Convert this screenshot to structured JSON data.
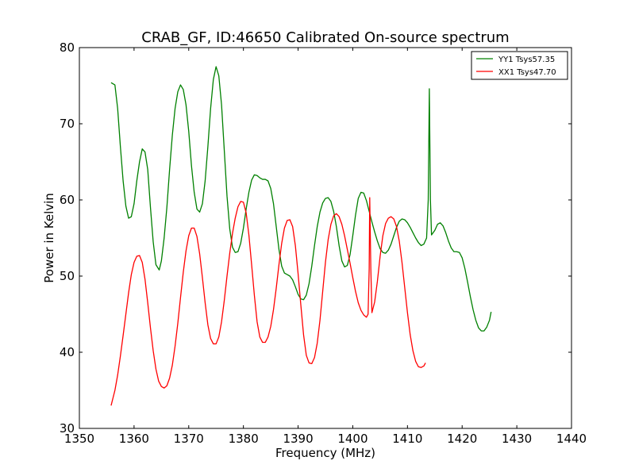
{
  "chart_data": {
    "type": "line",
    "title": "CRAB_GF, ID:46650 Calibrated On-source spectrum",
    "xlabel": "Frequency (MHz)",
    "ylabel": "Power in Kelvin",
    "xlim": [
      1350,
      1440
    ],
    "ylim": [
      30,
      80
    ],
    "xticks": [
      1350,
      1360,
      1370,
      1380,
      1390,
      1400,
      1410,
      1420,
      1430,
      1440
    ],
    "yticks": [
      30,
      40,
      50,
      60,
      70,
      80
    ],
    "grid": false,
    "legend_position": "top-right",
    "series": [
      {
        "name": "YY1 Tsys57.35",
        "color": "#008000",
        "points": [
          [
            1355.8,
            75.4
          ],
          [
            1356.5,
            75.1
          ],
          [
            1357.0,
            72.0
          ],
          [
            1357.5,
            67.0
          ],
          [
            1358.0,
            62.5
          ],
          [
            1358.5,
            59.2
          ],
          [
            1359.0,
            57.6
          ],
          [
            1359.5,
            57.8
          ],
          [
            1360.0,
            59.5
          ],
          [
            1360.5,
            62.5
          ],
          [
            1361.0,
            65.0
          ],
          [
            1361.5,
            66.7
          ],
          [
            1362.0,
            66.3
          ],
          [
            1362.5,
            64.0
          ],
          [
            1363.0,
            59.0
          ],
          [
            1363.5,
            54.5
          ],
          [
            1364.0,
            51.5
          ],
          [
            1364.6,
            50.8
          ],
          [
            1365.0,
            52.0
          ],
          [
            1365.5,
            55.0
          ],
          [
            1366.0,
            59.0
          ],
          [
            1366.5,
            64.0
          ],
          [
            1367.0,
            68.5
          ],
          [
            1367.5,
            72.0
          ],
          [
            1368.0,
            74.2
          ],
          [
            1368.5,
            75.1
          ],
          [
            1369.0,
            74.5
          ],
          [
            1369.5,
            72.5
          ],
          [
            1370.0,
            69.0
          ],
          [
            1370.5,
            64.5
          ],
          [
            1371.0,
            61.0
          ],
          [
            1371.5,
            58.8
          ],
          [
            1372.0,
            58.4
          ],
          [
            1372.5,
            59.5
          ],
          [
            1373.0,
            62.5
          ],
          [
            1373.5,
            67.0
          ],
          [
            1374.0,
            72.0
          ],
          [
            1374.5,
            75.8
          ],
          [
            1375.0,
            77.5
          ],
          [
            1375.5,
            76.3
          ],
          [
            1376.0,
            72.5
          ],
          [
            1376.5,
            66.5
          ],
          [
            1377.0,
            60.5
          ],
          [
            1377.5,
            56.2
          ],
          [
            1378.0,
            53.8
          ],
          [
            1378.5,
            53.1
          ],
          [
            1379.0,
            53.2
          ],
          [
            1379.5,
            54.3
          ],
          [
            1380.0,
            56.3
          ],
          [
            1380.5,
            58.8
          ],
          [
            1381.0,
            61.0
          ],
          [
            1381.5,
            62.6
          ],
          [
            1382.0,
            63.3
          ],
          [
            1382.5,
            63.2
          ],
          [
            1383.0,
            62.9
          ],
          [
            1383.5,
            62.7
          ],
          [
            1384.0,
            62.7
          ],
          [
            1384.5,
            62.5
          ],
          [
            1385.0,
            61.5
          ],
          [
            1385.5,
            59.5
          ],
          [
            1386.0,
            56.5
          ],
          [
            1386.5,
            53.5
          ],
          [
            1387.0,
            51.3
          ],
          [
            1387.5,
            50.4
          ],
          [
            1388.0,
            50.2
          ],
          [
            1388.5,
            50.0
          ],
          [
            1389.0,
            49.5
          ],
          [
            1389.5,
            48.6
          ],
          [
            1390.0,
            47.6
          ],
          [
            1390.5,
            47.0
          ],
          [
            1391.0,
            46.9
          ],
          [
            1391.5,
            47.5
          ],
          [
            1392.0,
            49.0
          ],
          [
            1392.5,
            51.3
          ],
          [
            1393.0,
            54.0
          ],
          [
            1393.5,
            56.5
          ],
          [
            1394.0,
            58.4
          ],
          [
            1394.5,
            59.6
          ],
          [
            1395.0,
            60.2
          ],
          [
            1395.5,
            60.3
          ],
          [
            1396.0,
            59.8
          ],
          [
            1396.5,
            58.5
          ],
          [
            1397.0,
            56.5
          ],
          [
            1397.5,
            54.0
          ],
          [
            1398.0,
            52.0
          ],
          [
            1398.5,
            51.2
          ],
          [
            1399.0,
            51.4
          ],
          [
            1399.5,
            52.8
          ],
          [
            1400.0,
            55.3
          ],
          [
            1400.5,
            58.0
          ],
          [
            1401.0,
            60.2
          ],
          [
            1401.5,
            61.0
          ],
          [
            1402.0,
            60.9
          ],
          [
            1402.5,
            59.9
          ],
          [
            1403.0,
            58.5
          ],
          [
            1403.5,
            57.1
          ],
          [
            1404.0,
            55.8
          ],
          [
            1404.5,
            54.6
          ],
          [
            1405.0,
            53.6
          ],
          [
            1405.5,
            53.1
          ],
          [
            1406.0,
            53.0
          ],
          [
            1406.5,
            53.4
          ],
          [
            1407.0,
            54.2
          ],
          [
            1407.5,
            55.3
          ],
          [
            1408.0,
            56.4
          ],
          [
            1408.5,
            57.2
          ],
          [
            1409.0,
            57.5
          ],
          [
            1409.5,
            57.4
          ],
          [
            1410.0,
            57.0
          ],
          [
            1410.5,
            56.4
          ],
          [
            1411.0,
            55.7
          ],
          [
            1411.5,
            55.0
          ],
          [
            1412.0,
            54.4
          ],
          [
            1412.5,
            54.0
          ],
          [
            1413.0,
            54.2
          ],
          [
            1413.5,
            55.0
          ],
          [
            1413.8,
            60.0
          ],
          [
            1414.0,
            74.6
          ],
          [
            1414.2,
            60.0
          ],
          [
            1414.4,
            55.4
          ],
          [
            1415.0,
            56.0
          ],
          [
            1415.5,
            56.8
          ],
          [
            1416.0,
            57.0
          ],
          [
            1416.5,
            56.6
          ],
          [
            1417.0,
            55.7
          ],
          [
            1417.5,
            54.6
          ],
          [
            1418.0,
            53.7
          ],
          [
            1418.5,
            53.2
          ],
          [
            1419.0,
            53.2
          ],
          [
            1419.5,
            53.1
          ],
          [
            1420.0,
            52.4
          ],
          [
            1420.5,
            51.0
          ],
          [
            1421.0,
            49.2
          ],
          [
            1421.5,
            47.3
          ],
          [
            1422.0,
            45.6
          ],
          [
            1422.5,
            44.2
          ],
          [
            1423.0,
            43.2
          ],
          [
            1423.5,
            42.8
          ],
          [
            1424.0,
            42.8
          ],
          [
            1424.5,
            43.3
          ],
          [
            1425.0,
            44.2
          ],
          [
            1425.3,
            45.3
          ]
        ]
      },
      {
        "name": "XX1 Tsys47.70",
        "color": "#ff0000",
        "points": [
          [
            1355.8,
            33.0
          ],
          [
            1356.5,
            35.0
          ],
          [
            1357.0,
            37.0
          ],
          [
            1357.5,
            39.5
          ],
          [
            1358.0,
            42.2
          ],
          [
            1358.5,
            45.0
          ],
          [
            1359.0,
            47.8
          ],
          [
            1359.5,
            50.2
          ],
          [
            1360.0,
            51.8
          ],
          [
            1360.5,
            52.6
          ],
          [
            1361.0,
            52.7
          ],
          [
            1361.5,
            51.8
          ],
          [
            1362.0,
            49.6
          ],
          [
            1362.5,
            46.5
          ],
          [
            1363.0,
            43.2
          ],
          [
            1363.5,
            40.2
          ],
          [
            1364.0,
            37.8
          ],
          [
            1364.5,
            36.2
          ],
          [
            1365.0,
            35.5
          ],
          [
            1365.5,
            35.3
          ],
          [
            1366.0,
            35.6
          ],
          [
            1366.5,
            36.6
          ],
          [
            1367.0,
            38.3
          ],
          [
            1367.5,
            40.8
          ],
          [
            1368.0,
            43.8
          ],
          [
            1368.5,
            47.2
          ],
          [
            1369.0,
            50.5
          ],
          [
            1369.5,
            53.3
          ],
          [
            1370.0,
            55.3
          ],
          [
            1370.5,
            56.3
          ],
          [
            1371.0,
            56.3
          ],
          [
            1371.5,
            55.2
          ],
          [
            1372.0,
            52.9
          ],
          [
            1372.5,
            49.8
          ],
          [
            1373.0,
            46.5
          ],
          [
            1373.5,
            43.6
          ],
          [
            1374.0,
            41.8
          ],
          [
            1374.5,
            41.1
          ],
          [
            1375.0,
            41.1
          ],
          [
            1375.5,
            42.0
          ],
          [
            1376.0,
            44.0
          ],
          [
            1376.5,
            46.8
          ],
          [
            1377.0,
            50.0
          ],
          [
            1377.5,
            53.0
          ],
          [
            1378.0,
            55.6
          ],
          [
            1378.5,
            57.6
          ],
          [
            1379.0,
            59.1
          ],
          [
            1379.5,
            59.8
          ],
          [
            1380.0,
            59.7
          ],
          [
            1380.5,
            58.3
          ],
          [
            1381.0,
            55.4
          ],
          [
            1381.5,
            51.5
          ],
          [
            1382.0,
            47.5
          ],
          [
            1382.5,
            44.0
          ],
          [
            1383.0,
            42.0
          ],
          [
            1383.5,
            41.3
          ],
          [
            1384.0,
            41.3
          ],
          [
            1384.5,
            42.0
          ],
          [
            1385.0,
            43.4
          ],
          [
            1385.5,
            45.6
          ],
          [
            1386.0,
            48.4
          ],
          [
            1386.5,
            51.5
          ],
          [
            1387.0,
            54.3
          ],
          [
            1387.5,
            56.3
          ],
          [
            1388.0,
            57.3
          ],
          [
            1388.5,
            57.4
          ],
          [
            1389.0,
            56.5
          ],
          [
            1389.5,
            54.0
          ],
          [
            1390.0,
            50.3
          ],
          [
            1390.5,
            46.2
          ],
          [
            1391.0,
            42.3
          ],
          [
            1391.5,
            39.6
          ],
          [
            1392.0,
            38.6
          ],
          [
            1392.5,
            38.5
          ],
          [
            1393.0,
            39.3
          ],
          [
            1393.5,
            41.2
          ],
          [
            1394.0,
            44.2
          ],
          [
            1394.5,
            48.0
          ],
          [
            1395.0,
            51.8
          ],
          [
            1395.5,
            54.8
          ],
          [
            1396.0,
            56.8
          ],
          [
            1396.5,
            57.9
          ],
          [
            1397.0,
            58.2
          ],
          [
            1397.5,
            57.8
          ],
          [
            1398.0,
            56.8
          ],
          [
            1398.5,
            55.3
          ],
          [
            1399.0,
            53.5
          ],
          [
            1399.5,
            51.7
          ],
          [
            1400.0,
            49.8
          ],
          [
            1400.5,
            48.0
          ],
          [
            1401.0,
            46.5
          ],
          [
            1401.5,
            45.5
          ],
          [
            1402.0,
            44.9
          ],
          [
            1402.5,
            44.6
          ],
          [
            1402.8,
            45.0
          ],
          [
            1403.0,
            51.0
          ],
          [
            1403.1,
            60.3
          ],
          [
            1403.3,
            51.0
          ],
          [
            1403.5,
            45.2
          ],
          [
            1404.0,
            46.6
          ],
          [
            1404.5,
            49.3
          ],
          [
            1405.0,
            52.6
          ],
          [
            1405.5,
            55.3
          ],
          [
            1406.0,
            56.9
          ],
          [
            1406.5,
            57.6
          ],
          [
            1407.0,
            57.8
          ],
          [
            1407.5,
            57.5
          ],
          [
            1408.0,
            56.5
          ],
          [
            1408.5,
            54.6
          ],
          [
            1409.0,
            51.8
          ],
          [
            1409.5,
            48.5
          ],
          [
            1410.0,
            45.2
          ],
          [
            1410.5,
            42.3
          ],
          [
            1411.0,
            40.2
          ],
          [
            1411.5,
            38.8
          ],
          [
            1412.0,
            38.1
          ],
          [
            1412.5,
            38.0
          ],
          [
            1413.0,
            38.2
          ],
          [
            1413.3,
            38.6
          ]
        ]
      }
    ]
  }
}
